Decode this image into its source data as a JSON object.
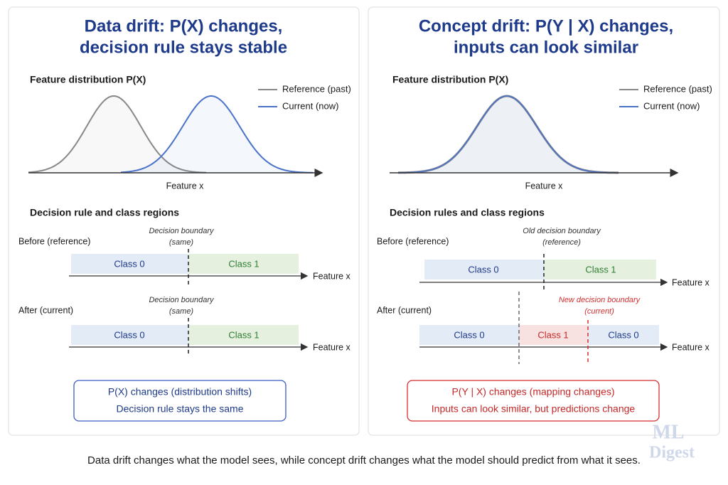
{
  "panels": [
    {
      "title": [
        "Data drift: P(X) changes,",
        "decision rule stays stable"
      ],
      "distribution": {
        "label": "Feature distribution P(X)",
        "legend": [
          "Reference (past)",
          "Current (now)"
        ],
        "x_label": "Feature x"
      },
      "rules": {
        "label": "Decision rule and class regions",
        "before": {
          "label": "Before (reference)",
          "boundary": [
            "Decision boundary",
            "(same)"
          ],
          "regions": [
            "Class 0",
            "Class 1"
          ],
          "axis": "Feature x"
        },
        "after": {
          "label": "After (current)",
          "boundary": [
            "Decision boundary",
            "(same)"
          ],
          "regions": [
            "Class 0",
            "Class 1"
          ],
          "axis": "Feature x"
        }
      },
      "summary": [
        "P(X) changes (distribution shifts)",
        "Decision rule stays the same"
      ]
    },
    {
      "title": [
        "Concept drift: P(Y | X) changes,",
        "inputs can look similar"
      ],
      "distribution": {
        "label": "Feature distribution P(X)",
        "legend": [
          "Reference (past)",
          "Current (now)"
        ],
        "x_label": "Feature x"
      },
      "rules": {
        "label": "Decision rules and class regions",
        "before": {
          "label": "Before (reference)",
          "boundary": [
            "Old decision boundary",
            "(reference)"
          ],
          "regions": [
            "Class 0",
            "Class 1"
          ],
          "axis": "Feature x"
        },
        "after": {
          "label": "After (current)",
          "boundary": [
            "New decision boundary",
            "(current)"
          ],
          "regions": [
            "Class 0",
            "Class 1",
            "Class 0"
          ],
          "axis": "Feature x"
        }
      },
      "summary": [
        "P(Y | X) changes (mapping changes)",
        "Inputs can look similar, but predictions change"
      ]
    }
  ],
  "footer": "Data drift changes what the model sees, while concept drift changes what the model should predict from what it sees.",
  "watermark": [
    "ML",
    "Digest"
  ]
}
